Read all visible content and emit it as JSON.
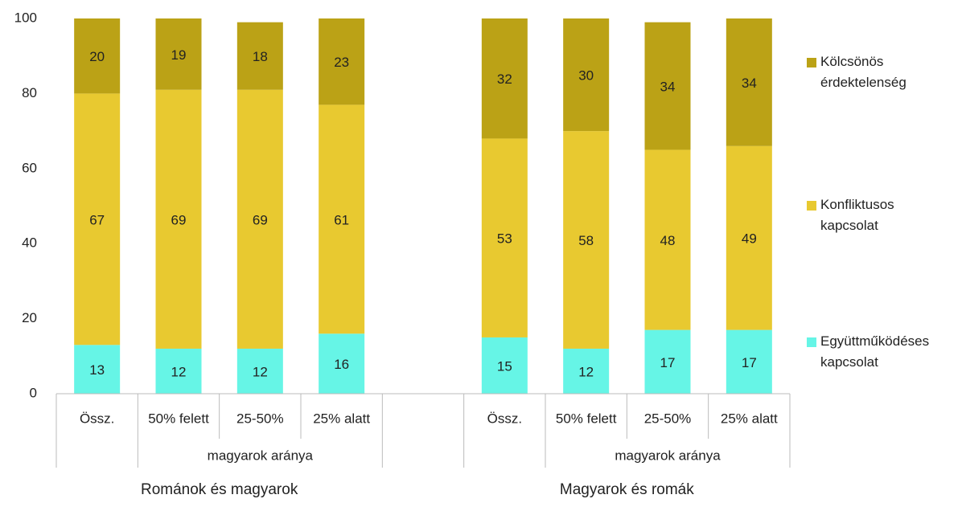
{
  "chart_data": {
    "type": "bar",
    "stacked": true,
    "categories": [
      "Össz.",
      "50% felett",
      "25-50%",
      "25% alatt",
      null,
      "Össz.",
      "50% felett",
      "25-50%",
      "25% alatt"
    ],
    "groups": [
      {
        "label": "Románok és magyarok",
        "sublabel": "magyarok aránya"
      },
      {
        "label": "Magyarok és romák",
        "sublabel": "magyarok aránya"
      }
    ],
    "series": [
      {
        "name": "Együttműködéses kapcsolat",
        "color": "#66f5e6",
        "values": [
          13,
          12,
          12,
          16,
          null,
          15,
          12,
          17,
          17
        ]
      },
      {
        "name": "Konfliktusos kapcsolat",
        "color": "#e8c930",
        "values": [
          67,
          69,
          69,
          61,
          null,
          53,
          58,
          48,
          49
        ]
      },
      {
        "name": "Kölcsönös érdektelenség",
        "color": "#bba216",
        "values": [
          20,
          19,
          18,
          23,
          null,
          32,
          30,
          34,
          34
        ]
      }
    ],
    "ylim": [
      0,
      100
    ],
    "yticks": [
      0,
      20,
      40,
      60,
      80,
      100
    ],
    "grid": false,
    "legend": "right"
  }
}
